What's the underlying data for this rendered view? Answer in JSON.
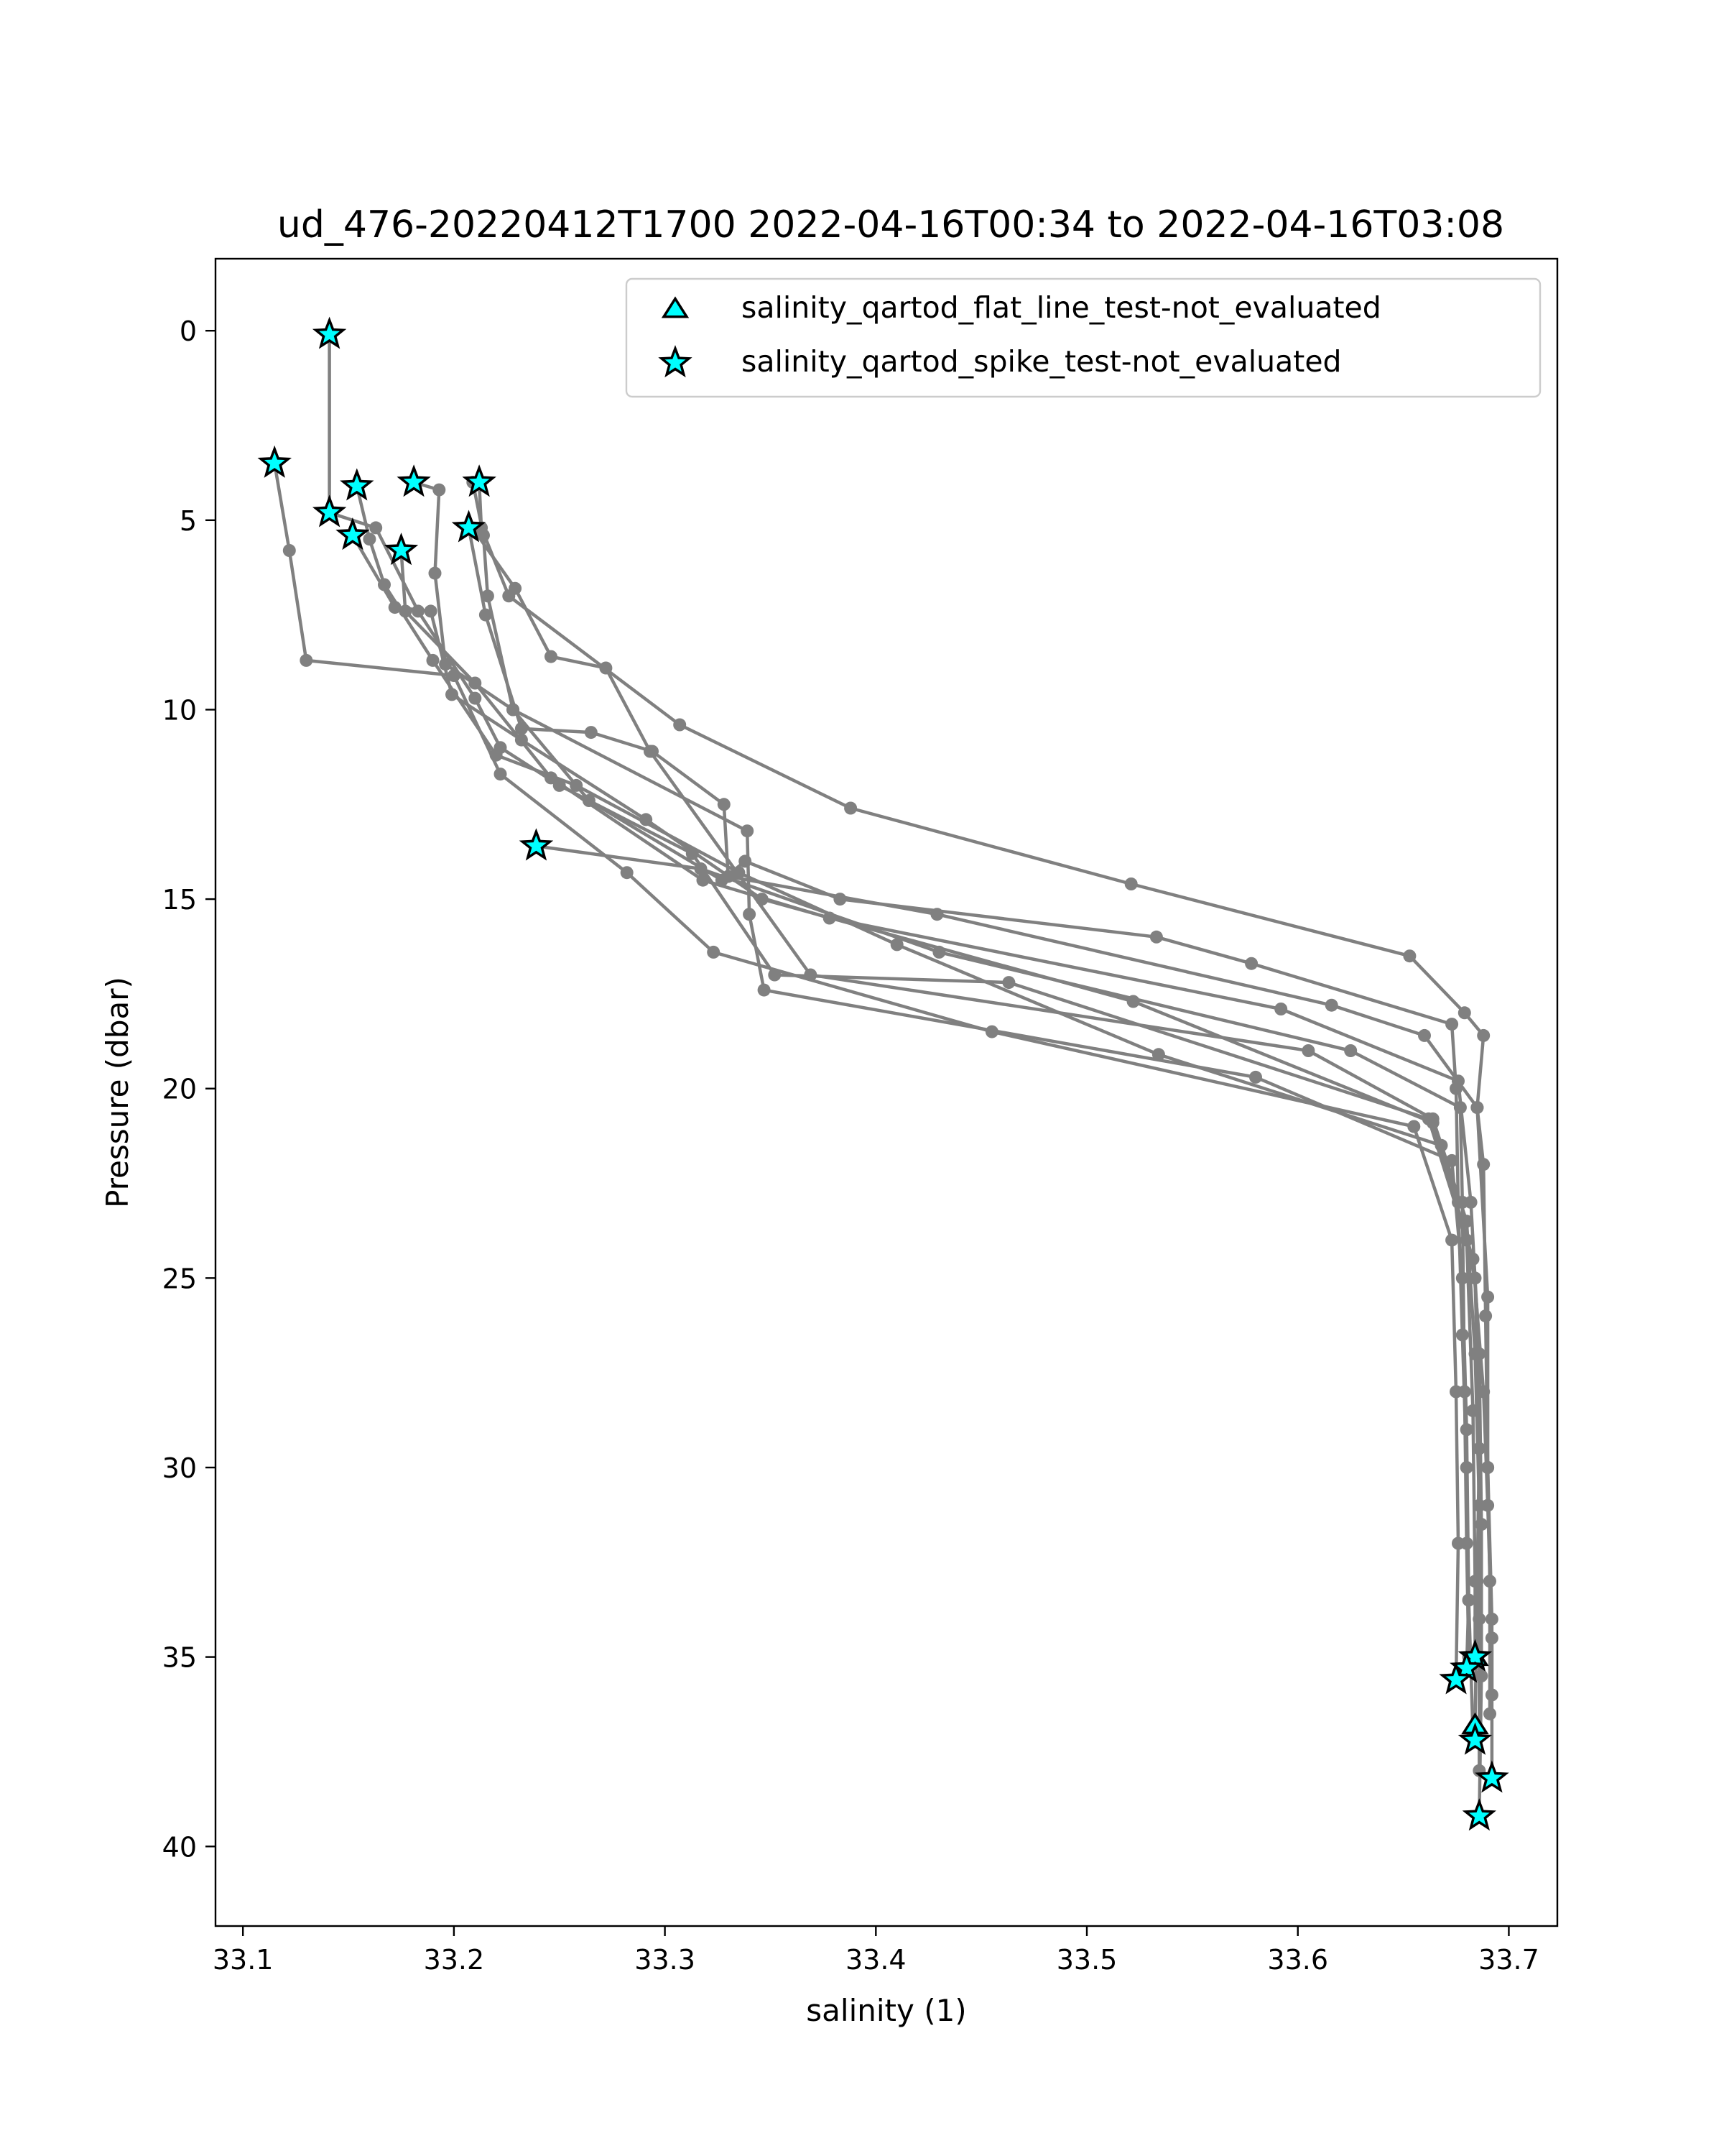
{
  "chart_data": {
    "type": "line",
    "title": "ud_476-20220412T1700 2022-04-16T00:34 to 2022-04-16T03:08",
    "xlabel": "salinity (1)",
    "ylabel": "Pressure (dbar)",
    "xlim": [
      33.087,
      33.723
    ],
    "ylim": [
      42.1,
      -1.9
    ],
    "y_inverted": true,
    "xticks": [
      "33.1",
      "33.2",
      "33.3",
      "33.4",
      "33.5",
      "33.6",
      "33.7"
    ],
    "xtick_values": [
      33.1,
      33.2,
      33.3,
      33.4,
      33.5,
      33.6,
      33.7
    ],
    "yticks": [
      "0",
      "5",
      "10",
      "15",
      "20",
      "25",
      "30",
      "35",
      "40"
    ],
    "ytick_values": [
      0,
      5,
      10,
      15,
      20,
      25,
      30,
      35,
      40
    ],
    "grid": false,
    "legend_position": "upper right",
    "colors": {
      "line": "#808080",
      "marker_fill": "#00ffff",
      "marker_edge": "#000000"
    },
    "legend": [
      {
        "label": "salinity_qartod_flat_line_test-not_evaluated",
        "marker": "triangle"
      },
      {
        "label": "salinity_qartod_spike_test-not_evaluated",
        "marker": "star"
      }
    ],
    "series": [
      {
        "values": [
          [
            33.141,
            0.1
          ],
          [
            33.141,
            4.8
          ],
          [
            33.163,
            5.2
          ],
          [
            33.183,
            7.4
          ],
          [
            33.21,
            9.7
          ],
          [
            33.222,
            11.0
          ],
          [
            33.25,
            12.0
          ],
          [
            33.313,
            13.8
          ],
          [
            33.352,
            17.0
          ],
          [
            33.463,
            17.2
          ],
          [
            33.662,
            20.8
          ],
          [
            33.68,
            24.0
          ],
          [
            33.683,
            28.5
          ],
          [
            33.684,
            33.0
          ],
          [
            33.684,
            35.0
          ]
        ]
      },
      {
        "values": [
          [
            33.115,
            3.5
          ],
          [
            33.122,
            5.8
          ],
          [
            33.13,
            8.7
          ],
          [
            33.2,
            9.1
          ],
          [
            33.222,
            11.7
          ],
          [
            33.282,
            14.3
          ],
          [
            33.323,
            16.4
          ],
          [
            33.455,
            18.5
          ],
          [
            33.655,
            21.0
          ],
          [
            33.673,
            24.0
          ],
          [
            33.675,
            28.0
          ],
          [
            33.676,
            32.0
          ],
          [
            33.675,
            35.6
          ]
        ]
      },
      {
        "values": [
          [
            33.154,
            4.1
          ],
          [
            33.16,
            5.5
          ],
          [
            33.167,
            6.7
          ],
          [
            33.19,
            8.7
          ],
          [
            33.22,
            11.2
          ],
          [
            33.258,
            12.0
          ],
          [
            33.335,
            14.3
          ],
          [
            33.41,
            16.2
          ],
          [
            33.534,
            19.1
          ],
          [
            33.668,
            21.5
          ],
          [
            33.684,
            25.0
          ],
          [
            33.686,
            29.5
          ],
          [
            33.685,
            33.0
          ],
          [
            33.684,
            36.8
          ],
          [
            33.684,
            37.2
          ]
        ]
      },
      {
        "values": [
          [
            33.152,
            5.4
          ],
          [
            33.172,
            7.3
          ],
          [
            33.189,
            7.4
          ],
          [
            33.199,
            9.6
          ],
          [
            33.232,
            10.8
          ],
          [
            33.291,
            12.9
          ],
          [
            33.346,
            15.0
          ],
          [
            33.522,
            17.7
          ],
          [
            33.664,
            20.9
          ],
          [
            33.683,
            24.5
          ],
          [
            33.688,
            28.0
          ],
          [
            33.69,
            31.0
          ],
          [
            33.692,
            34.5
          ],
          [
            33.692,
            38.2
          ]
        ]
      },
      {
        "values": [
          [
            33.175,
            5.8
          ],
          [
            33.177,
            7.4
          ],
          [
            33.21,
            9.3
          ],
          [
            33.246,
            11.8
          ],
          [
            33.318,
            14.5
          ],
          [
            33.378,
            15.5
          ],
          [
            33.592,
            17.9
          ],
          [
            33.676,
            19.8
          ],
          [
            33.682,
            23.0
          ],
          [
            33.686,
            27.0
          ],
          [
            33.687,
            31.5
          ],
          [
            33.687,
            35.5
          ],
          [
            33.686,
            39.2
          ]
        ]
      },
      {
        "values": [
          [
            33.181,
            4.0
          ],
          [
            33.193,
            4.2
          ],
          [
            33.191,
            6.4
          ],
          [
            33.196,
            8.8
          ],
          [
            33.228,
            10.0
          ],
          [
            33.339,
            13.2
          ],
          [
            33.34,
            15.4
          ],
          [
            33.347,
            17.4
          ],
          [
            33.58,
            19.7
          ],
          [
            33.673,
            21.9
          ],
          [
            33.678,
            25.0
          ],
          [
            33.68,
            29.0
          ],
          [
            33.681,
            33.5
          ],
          [
            33.683,
            37.0
          ]
        ]
      },
      {
        "values": [
          [
            33.209,
            4.0
          ],
          [
            33.214,
            5.4
          ],
          [
            33.216,
            7.0
          ],
          [
            33.228,
            10.0
          ],
          [
            33.264,
            12.4
          ],
          [
            33.327,
            14.5
          ],
          [
            33.338,
            14.0
          ],
          [
            33.383,
            15.0
          ],
          [
            33.533,
            16.0
          ],
          [
            33.578,
            16.7
          ],
          [
            33.673,
            18.3
          ],
          [
            33.675,
            20.0
          ],
          [
            33.676,
            23.0
          ],
          [
            33.678,
            26.5
          ],
          [
            33.68,
            30.0
          ],
          [
            33.681,
            33.5
          ],
          [
            33.68,
            35.3
          ]
        ]
      },
      {
        "values": [
          [
            33.207,
            5.2
          ],
          [
            33.215,
            7.5
          ],
          [
            33.232,
            10.5
          ],
          [
            33.265,
            10.6
          ],
          [
            33.294,
            11.1
          ],
          [
            33.328,
            12.5
          ],
          [
            33.33,
            14.4
          ],
          [
            33.429,
            15.4
          ],
          [
            33.616,
            17.8
          ],
          [
            33.66,
            18.6
          ],
          [
            33.685,
            20.5
          ],
          [
            33.69,
            25.5
          ],
          [
            33.69,
            30.0
          ],
          [
            33.692,
            34.0
          ],
          [
            33.692,
            36.0
          ]
        ]
      },
      {
        "values": [
          [
            33.21,
            5.3
          ],
          [
            33.229,
            6.8
          ],
          [
            33.246,
            8.6
          ],
          [
            33.272,
            8.9
          ],
          [
            33.293,
            11.1
          ],
          [
            33.369,
            17.0
          ],
          [
            33.605,
            19.0
          ],
          [
            33.664,
            20.8
          ],
          [
            33.68,
            23.5
          ],
          [
            33.684,
            27.0
          ],
          [
            33.686,
            31.0
          ],
          [
            33.686,
            34.0
          ],
          [
            33.686,
            38.0
          ]
        ]
      },
      {
        "values": [
          [
            33.212,
            4.0
          ],
          [
            33.213,
            5.2
          ],
          [
            33.226,
            7.0
          ],
          [
            33.307,
            10.4
          ],
          [
            33.388,
            12.6
          ],
          [
            33.521,
            14.6
          ],
          [
            33.653,
            16.5
          ],
          [
            33.679,
            18.0
          ],
          [
            33.688,
            18.6
          ],
          [
            33.685,
            20.5
          ],
          [
            33.688,
            22.0
          ],
          [
            33.689,
            26.0
          ],
          [
            33.69,
            30.0
          ],
          [
            33.691,
            33.0
          ],
          [
            33.691,
            36.5
          ]
        ]
      },
      {
        "values": [
          [
            33.239,
            13.6
          ],
          [
            33.317,
            14.2
          ],
          [
            33.43,
            16.4
          ],
          [
            33.625,
            19.0
          ],
          [
            33.677,
            20.5
          ],
          [
            33.678,
            23.0
          ],
          [
            33.679,
            28.0
          ],
          [
            33.68,
            32.0
          ],
          [
            33.681,
            35.0
          ]
        ]
      }
    ],
    "markers": {
      "flat_line_test": [
        [
          33.684,
          35.0
        ],
        [
          33.684,
          36.8
        ]
      ],
      "spike_test": [
        [
          33.141,
          0.1
        ],
        [
          33.115,
          3.5
        ],
        [
          33.154,
          4.1
        ],
        [
          33.181,
          4.0
        ],
        [
          33.212,
          4.0
        ],
        [
          33.141,
          4.8
        ],
        [
          33.152,
          5.4
        ],
        [
          33.207,
          5.2
        ],
        [
          33.175,
          5.8
        ],
        [
          33.239,
          13.6
        ],
        [
          33.684,
          35.0
        ],
        [
          33.68,
          35.3
        ],
        [
          33.675,
          35.6
        ],
        [
          33.684,
          37.2
        ],
        [
          33.692,
          38.2
        ],
        [
          33.686,
          39.2
        ]
      ]
    }
  }
}
